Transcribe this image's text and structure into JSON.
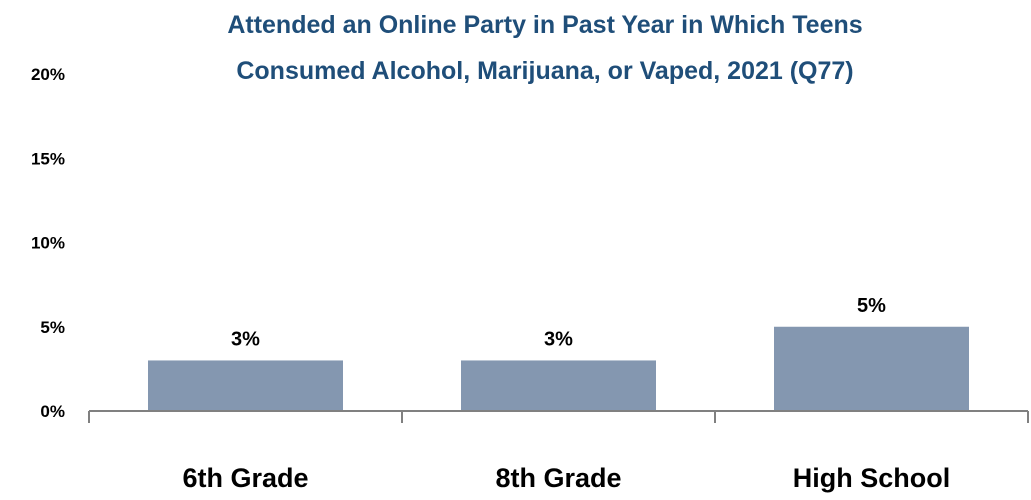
{
  "chart_data": {
    "type": "bar",
    "title_lines": [
      "Attended an Online Party in Past Year in Which Teens",
      "Consumed Alcohol, Marijuana, or Vaped, 2021 (Q77)"
    ],
    "categories": [
      "6th Grade",
      "8th Grade",
      "High School"
    ],
    "values": [
      3,
      3,
      5
    ],
    "value_labels": [
      "3%",
      "3%",
      "5%"
    ],
    "ylim": [
      0,
      20
    ],
    "yticks": [
      0,
      5,
      10,
      15,
      20
    ],
    "ytick_labels": [
      "0%",
      "5%",
      "10%",
      "15%",
      "20%"
    ],
    "grid": false,
    "legend": "none"
  },
  "colors": {
    "title": "#1f4e79",
    "bar": "#8497b0",
    "axis": "#808080",
    "text": "#000000"
  }
}
